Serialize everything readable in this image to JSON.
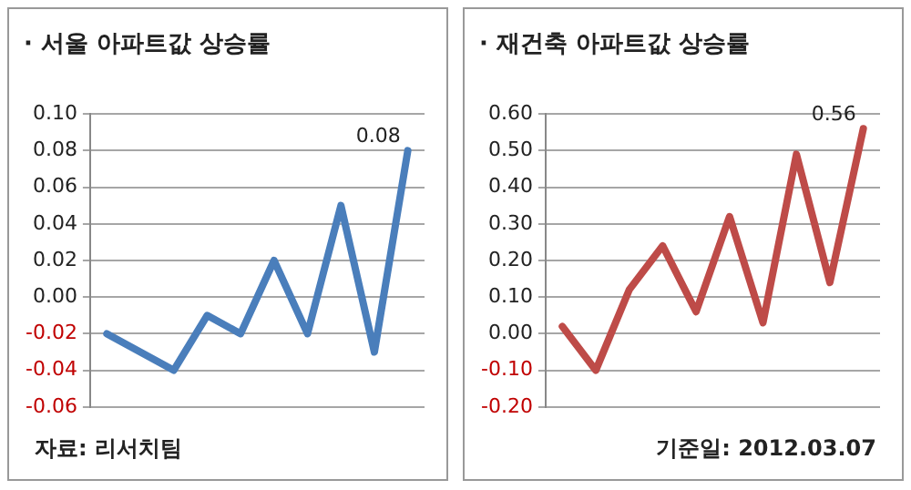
{
  "chart_data": [
    {
      "type": "line",
      "title": "· 서울 아파트값 상승률",
      "categories": [
        null,
        null,
        null,
        null,
        null,
        null,
        null,
        null,
        null,
        null
      ],
      "series": [
        {
          "color": "#4a7ebb",
          "values": [
            -0.02,
            -0.03,
            -0.04,
            -0.01,
            -0.02,
            0.02,
            -0.02,
            0.05,
            -0.03,
            0.08
          ],
          "value_labels": [
            null,
            null,
            null,
            null,
            null,
            null,
            null,
            null,
            null,
            "0.08"
          ]
        }
      ],
      "ylim": [
        -0.06,
        0.1
      ],
      "yticks": [
        {
          "value": -0.06,
          "label": "-0.06"
        },
        {
          "value": -0.04,
          "label": "-0.04"
        },
        {
          "value": -0.02,
          "label": "-0.02"
        },
        {
          "value": 0,
          "label": "0.00"
        },
        {
          "value": 0.02,
          "label": "0.02"
        },
        {
          "value": 0.04,
          "label": "0.04"
        },
        {
          "value": 0.06,
          "label": "0.06"
        },
        {
          "value": 0.08,
          "label": "0.08"
        },
        {
          "value": 0.1,
          "label": "0.10"
        }
      ],
      "grid": "y",
      "legend": false,
      "marker": "none",
      "line_style": "solid",
      "tick_labels": "y",
      "annotations": [
        "자료: 리서치팀"
      ]
    },
    {
      "type": "line",
      "title": "· 재건축 아파트값 상승률",
      "categories": [
        null,
        null,
        null,
        null,
        null,
        null,
        null,
        null,
        null,
        null
      ],
      "series": [
        {
          "color": "#be4b48",
          "values": [
            0.02,
            -0.1,
            0.12,
            0.24,
            0.06,
            0.32,
            0.03,
            0.49,
            0.14,
            0.56
          ],
          "value_labels": [
            null,
            null,
            null,
            null,
            null,
            null,
            null,
            null,
            null,
            "0.56"
          ]
        }
      ],
      "ylim": [
        -0.2,
        0.6
      ],
      "yticks": [
        {
          "value": -0.2,
          "label": "-0.20"
        },
        {
          "value": -0.1,
          "label": "-0.10"
        },
        {
          "value": 0,
          "label": "0.00"
        },
        {
          "value": 0.1,
          "label": "0.10"
        },
        {
          "value": 0.2,
          "label": "0.20"
        },
        {
          "value": 0.3,
          "label": "0.30"
        },
        {
          "value": 0.4,
          "label": "0.40"
        },
        {
          "value": 0.5,
          "label": "0.50"
        },
        {
          "value": 0.6,
          "label": "0.60"
        }
      ],
      "grid": "y",
      "legend": false,
      "marker": "none",
      "line_style": "solid",
      "tick_labels": "y",
      "annotations": [
        "기준일: 2012.03.07"
      ]
    }
  ]
}
